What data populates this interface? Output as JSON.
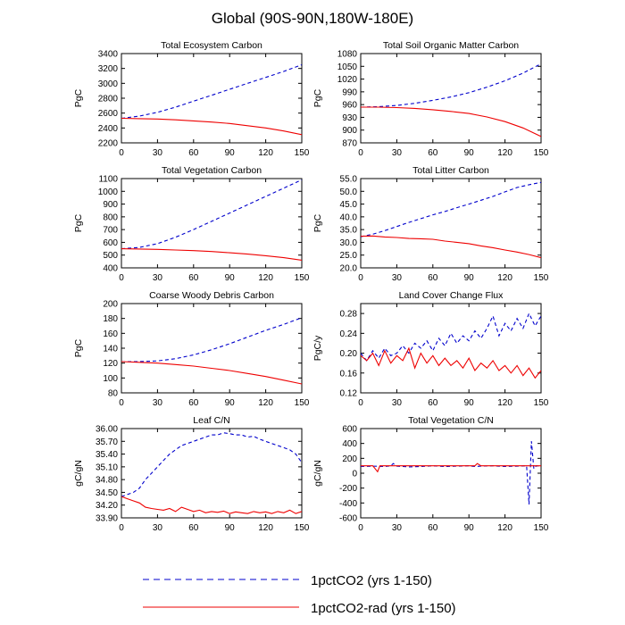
{
  "title": "Global (90S-90N,180W-180E)",
  "colors": {
    "series1": "#0000cc",
    "series2": "#ee0000"
  },
  "legend": [
    {
      "label": "1pctCO2 (yrs 1-150)",
      "style": "dashed",
      "color": "#0000cc"
    },
    {
      "label": "1pctCO2-rad (yrs 1-150)",
      "style": "solid",
      "color": "#ee0000"
    }
  ],
  "chart_data": [
    {
      "type": "line",
      "title": "Total Ecosystem Carbon",
      "ylabel": "PgC",
      "xlim": [
        0,
        150
      ],
      "ylim": [
        2200,
        3400
      ],
      "xticks": [
        0,
        30,
        60,
        90,
        120,
        150
      ],
      "yticks": [
        2200,
        2400,
        2600,
        2800,
        3000,
        3200,
        3400
      ],
      "ytick_labels": [
        "2200",
        "2400",
        "2600",
        "2800",
        "3000",
        "3200",
        "3400"
      ],
      "series": [
        {
          "style": "dashed",
          "x": [
            0,
            15,
            30,
            45,
            60,
            75,
            90,
            105,
            120,
            135,
            150
          ],
          "y": [
            2530,
            2560,
            2610,
            2680,
            2760,
            2840,
            2920,
            3000,
            3080,
            3160,
            3250
          ]
        },
        {
          "style": "solid",
          "x": [
            0,
            15,
            30,
            45,
            60,
            75,
            90,
            105,
            120,
            135,
            150
          ],
          "y": [
            2530,
            2525,
            2520,
            2510,
            2495,
            2480,
            2460,
            2430,
            2400,
            2360,
            2310
          ]
        }
      ]
    },
    {
      "type": "line",
      "title": "Total Soil Organic Matter Carbon",
      "ylabel": "PgC",
      "xlim": [
        0,
        150
      ],
      "ylim": [
        870,
        1080
      ],
      "xticks": [
        0,
        30,
        60,
        90,
        120,
        150
      ],
      "yticks": [
        870,
        900,
        930,
        960,
        990,
        1020,
        1050,
        1080
      ],
      "ytick_labels": [
        "870",
        "900",
        "930",
        "960",
        "990",
        "1020",
        "1050",
        "1080"
      ],
      "series": [
        {
          "style": "dashed",
          "x": [
            0,
            15,
            30,
            45,
            60,
            75,
            90,
            105,
            120,
            135,
            150
          ],
          "y": [
            954,
            955,
            958,
            963,
            970,
            978,
            988,
            1001,
            1016,
            1034,
            1056
          ]
        },
        {
          "style": "solid",
          "x": [
            0,
            15,
            30,
            45,
            60,
            75,
            90,
            105,
            120,
            135,
            150
          ],
          "y": [
            954,
            954,
            953,
            951,
            948,
            944,
            939,
            931,
            920,
            905,
            885
          ]
        }
      ]
    },
    {
      "type": "line",
      "title": "Total Vegetation Carbon",
      "ylabel": "PgC",
      "xlim": [
        0,
        150
      ],
      "ylim": [
        400,
        1100
      ],
      "xticks": [
        0,
        30,
        60,
        90,
        120,
        150
      ],
      "yticks": [
        400,
        500,
        600,
        700,
        800,
        900,
        1000,
        1100
      ],
      "ytick_labels": [
        "400",
        "500",
        "600",
        "700",
        "800",
        "900",
        "1000",
        "1100"
      ],
      "series": [
        {
          "style": "dashed",
          "x": [
            0,
            15,
            30,
            45,
            60,
            75,
            90,
            105,
            120,
            135,
            150
          ],
          "y": [
            550,
            560,
            590,
            640,
            700,
            765,
            830,
            895,
            960,
            1025,
            1090
          ]
        },
        {
          "style": "solid",
          "x": [
            0,
            15,
            30,
            45,
            60,
            75,
            90,
            105,
            120,
            135,
            150
          ],
          "y": [
            550,
            548,
            545,
            540,
            535,
            528,
            518,
            508,
            495,
            480,
            460
          ]
        }
      ]
    },
    {
      "type": "line",
      "title": "Total Litter Carbon",
      "ylabel": "PgC",
      "xlim": [
        0,
        150
      ],
      "ylim": [
        20,
        55
      ],
      "xticks": [
        0,
        30,
        60,
        90,
        120,
        150
      ],
      "yticks": [
        20,
        25,
        30,
        35,
        40,
        45,
        50,
        55
      ],
      "ytick_labels": [
        "20.0",
        "25.0",
        "30.0",
        "35.0",
        "40.0",
        "45.0",
        "50.0",
        "55.0"
      ],
      "series": [
        {
          "style": "dashed",
          "x": [
            0,
            10,
            20,
            30,
            40,
            50,
            60,
            70,
            80,
            90,
            100,
            110,
            120,
            130,
            140,
            150
          ],
          "y": [
            32.2,
            33.2,
            34.6,
            36.2,
            37.8,
            39.3,
            40.8,
            42.1,
            43.6,
            45.0,
            46.5,
            48.0,
            49.8,
            51.5,
            52.6,
            53.5
          ]
        },
        {
          "style": "solid",
          "x": [
            0,
            10,
            20,
            30,
            40,
            50,
            60,
            70,
            80,
            90,
            100,
            110,
            120,
            130,
            140,
            150
          ],
          "y": [
            32.4,
            32.5,
            32.1,
            31.9,
            31.5,
            31.4,
            31.2,
            30.5,
            30.0,
            29.5,
            28.6,
            27.9,
            27.0,
            26.2,
            25.2,
            24.0
          ]
        }
      ]
    },
    {
      "type": "line",
      "title": "Coarse Woody Debris Carbon",
      "ylabel": "PgC",
      "xlim": [
        0,
        150
      ],
      "ylim": [
        80,
        200
      ],
      "xticks": [
        0,
        30,
        60,
        90,
        120,
        150
      ],
      "yticks": [
        80,
        100,
        120,
        140,
        160,
        180,
        200
      ],
      "ytick_labels": [
        "80",
        "100",
        "120",
        "140",
        "160",
        "180",
        "200"
      ],
      "series": [
        {
          "style": "dashed",
          "x": [
            0,
            15,
            30,
            45,
            60,
            75,
            90,
            105,
            120,
            135,
            150
          ],
          "y": [
            122,
            122,
            123,
            126,
            131,
            138,
            146,
            155,
            164,
            172,
            181
          ]
        },
        {
          "style": "solid",
          "x": [
            0,
            15,
            30,
            45,
            60,
            75,
            90,
            105,
            120,
            135,
            150
          ],
          "y": [
            122,
            121,
            120,
            118,
            116,
            113,
            110,
            106,
            102,
            97,
            92
          ]
        }
      ]
    },
    {
      "type": "line",
      "title": "Land Cover Change Flux",
      "ylabel": "PgC/y",
      "xlim": [
        0,
        150
      ],
      "ylim": [
        0.12,
        0.3
      ],
      "xticks": [
        0,
        30,
        60,
        90,
        120,
        150
      ],
      "yticks": [
        0.12,
        0.16,
        0.2,
        0.24,
        0.28
      ],
      "ytick_labels": [
        "0.12",
        "0.16",
        "0.20",
        "0.24",
        "0.28"
      ],
      "series": [
        {
          "style": "dashed",
          "x": [
            0,
            5,
            10,
            15,
            20,
            25,
            30,
            35,
            40,
            45,
            50,
            55,
            60,
            65,
            70,
            75,
            80,
            85,
            90,
            95,
            100,
            105,
            110,
            115,
            120,
            125,
            130,
            135,
            140,
            145,
            150
          ],
          "y": [
            0.2,
            0.185,
            0.205,
            0.19,
            0.21,
            0.195,
            0.2,
            0.215,
            0.2,
            0.22,
            0.21,
            0.225,
            0.205,
            0.23,
            0.215,
            0.24,
            0.22,
            0.235,
            0.225,
            0.245,
            0.23,
            0.25,
            0.275,
            0.235,
            0.26,
            0.245,
            0.27,
            0.25,
            0.28,
            0.255,
            0.275
          ]
        },
        {
          "style": "solid",
          "x": [
            0,
            5,
            10,
            15,
            20,
            25,
            30,
            35,
            40,
            45,
            50,
            55,
            60,
            65,
            70,
            75,
            80,
            85,
            90,
            95,
            100,
            105,
            110,
            115,
            120,
            125,
            130,
            135,
            140,
            145,
            150
          ],
          "y": [
            0.195,
            0.185,
            0.2,
            0.175,
            0.205,
            0.18,
            0.195,
            0.185,
            0.21,
            0.17,
            0.2,
            0.18,
            0.195,
            0.175,
            0.19,
            0.175,
            0.185,
            0.17,
            0.19,
            0.165,
            0.18,
            0.17,
            0.185,
            0.165,
            0.175,
            0.16,
            0.175,
            0.155,
            0.17,
            0.15,
            0.165
          ]
        }
      ]
    },
    {
      "type": "line",
      "title": "Leaf C/N",
      "ylabel": "gC/gN",
      "xlim": [
        0,
        150
      ],
      "ylim": [
        33.9,
        36.0
      ],
      "xticks": [
        0,
        30,
        60,
        90,
        120,
        150
      ],
      "yticks": [
        33.9,
        34.2,
        34.5,
        34.8,
        35.1,
        35.4,
        35.7,
        36.0
      ],
      "ytick_labels": [
        "33.90",
        "34.20",
        "34.50",
        "34.80",
        "35.10",
        "35.40",
        "35.70",
        "36.00"
      ],
      "series": [
        {
          "style": "dashed",
          "x": [
            0,
            5,
            10,
            15,
            20,
            25,
            30,
            35,
            40,
            45,
            50,
            55,
            60,
            65,
            70,
            75,
            80,
            85,
            90,
            95,
            100,
            105,
            110,
            115,
            120,
            125,
            130,
            135,
            140,
            145,
            150
          ],
          "y": [
            34.4,
            34.45,
            34.5,
            34.6,
            34.8,
            34.95,
            35.1,
            35.25,
            35.4,
            35.5,
            35.6,
            35.65,
            35.7,
            35.75,
            35.8,
            35.85,
            35.85,
            35.9,
            35.88,
            35.85,
            35.85,
            35.8,
            35.82,
            35.75,
            35.7,
            35.65,
            35.6,
            35.55,
            35.5,
            35.4,
            35.2
          ]
        },
        {
          "style": "solid",
          "x": [
            0,
            5,
            10,
            15,
            20,
            25,
            30,
            35,
            40,
            45,
            50,
            55,
            60,
            65,
            70,
            75,
            80,
            85,
            90,
            95,
            100,
            105,
            110,
            115,
            120,
            125,
            130,
            135,
            140,
            145,
            150
          ],
          "y": [
            34.4,
            34.35,
            34.3,
            34.25,
            34.15,
            34.12,
            34.1,
            34.08,
            34.12,
            34.05,
            34.15,
            34.1,
            34.05,
            34.08,
            34.02,
            34.05,
            34.03,
            34.06,
            34.0,
            34.04,
            34.02,
            34.0,
            34.05,
            34.02,
            34.04,
            34.0,
            34.05,
            34.02,
            34.08,
            34.0,
            34.05
          ]
        }
      ]
    },
    {
      "type": "line",
      "title": "Total Vegetation C/N",
      "ylabel": "gC/gN",
      "xlim": [
        0,
        150
      ],
      "ylim": [
        -600,
        600
      ],
      "xticks": [
        0,
        30,
        60,
        90,
        120,
        150
      ],
      "yticks": [
        -600,
        -400,
        -200,
        0,
        200,
        400,
        600
      ],
      "ytick_labels": [
        "-600",
        "-400",
        "-200",
        "0",
        "200",
        "400",
        "600"
      ],
      "series": [
        {
          "style": "dashed",
          "x": [
            0,
            10,
            20,
            25,
            27,
            30,
            40,
            50,
            60,
            70,
            80,
            90,
            95,
            100,
            110,
            120,
            130,
            138,
            140,
            142,
            144,
            146,
            150
          ],
          "y": [
            90,
            95,
            90,
            100,
            130,
            95,
            85,
            90,
            100,
            90,
            95,
            100,
            90,
            95,
            100,
            90,
            95,
            100,
            -420,
            430,
            60,
            100,
            95
          ]
        },
        {
          "style": "solid",
          "x": [
            0,
            10,
            14,
            16,
            20,
            40,
            60,
            80,
            95,
            97,
            100,
            120,
            140,
            150
          ],
          "y": [
            100,
            100,
            20,
            100,
            100,
            100,
            100,
            100,
            100,
            130,
            100,
            100,
            100,
            100
          ]
        }
      ]
    }
  ]
}
